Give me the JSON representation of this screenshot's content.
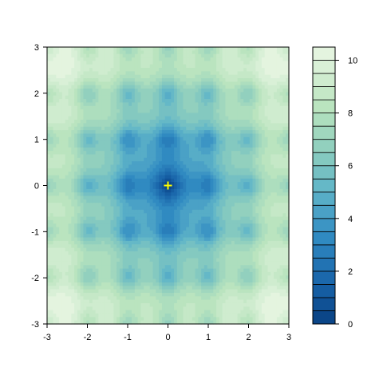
{
  "chart_data": {
    "type": "heatmap",
    "title": "",
    "xlabel": "",
    "ylabel": "",
    "xlim": [
      -3,
      3
    ],
    "ylim": [
      -3,
      3
    ],
    "x_ticks": [
      "-3",
      "-2",
      "-1",
      "0",
      "1",
      "2",
      "3"
    ],
    "y_ticks": [
      "-3",
      "-2",
      "-1",
      "0",
      "1",
      "2",
      "3"
    ],
    "z_range": [
      0,
      10.5
    ],
    "colorbar_ticks": [
      "0",
      "2",
      "4",
      "6",
      "8",
      "10"
    ],
    "colorbar_levels": 21,
    "surface": "Ackley-like function: z = -20*exp(-0.2*sqrt(0.5*(x^2+y^2))) - exp(0.5*(cos(2*pi*x)+cos(2*pi*y))) + e + 20",
    "marker": {
      "x": 0,
      "y": 0,
      "symbol": "+",
      "color": "#ffff00"
    },
    "colors": {
      "low": "#08306b",
      "mid": "#6fc5c5",
      "high": "#e9f6e3"
    }
  }
}
